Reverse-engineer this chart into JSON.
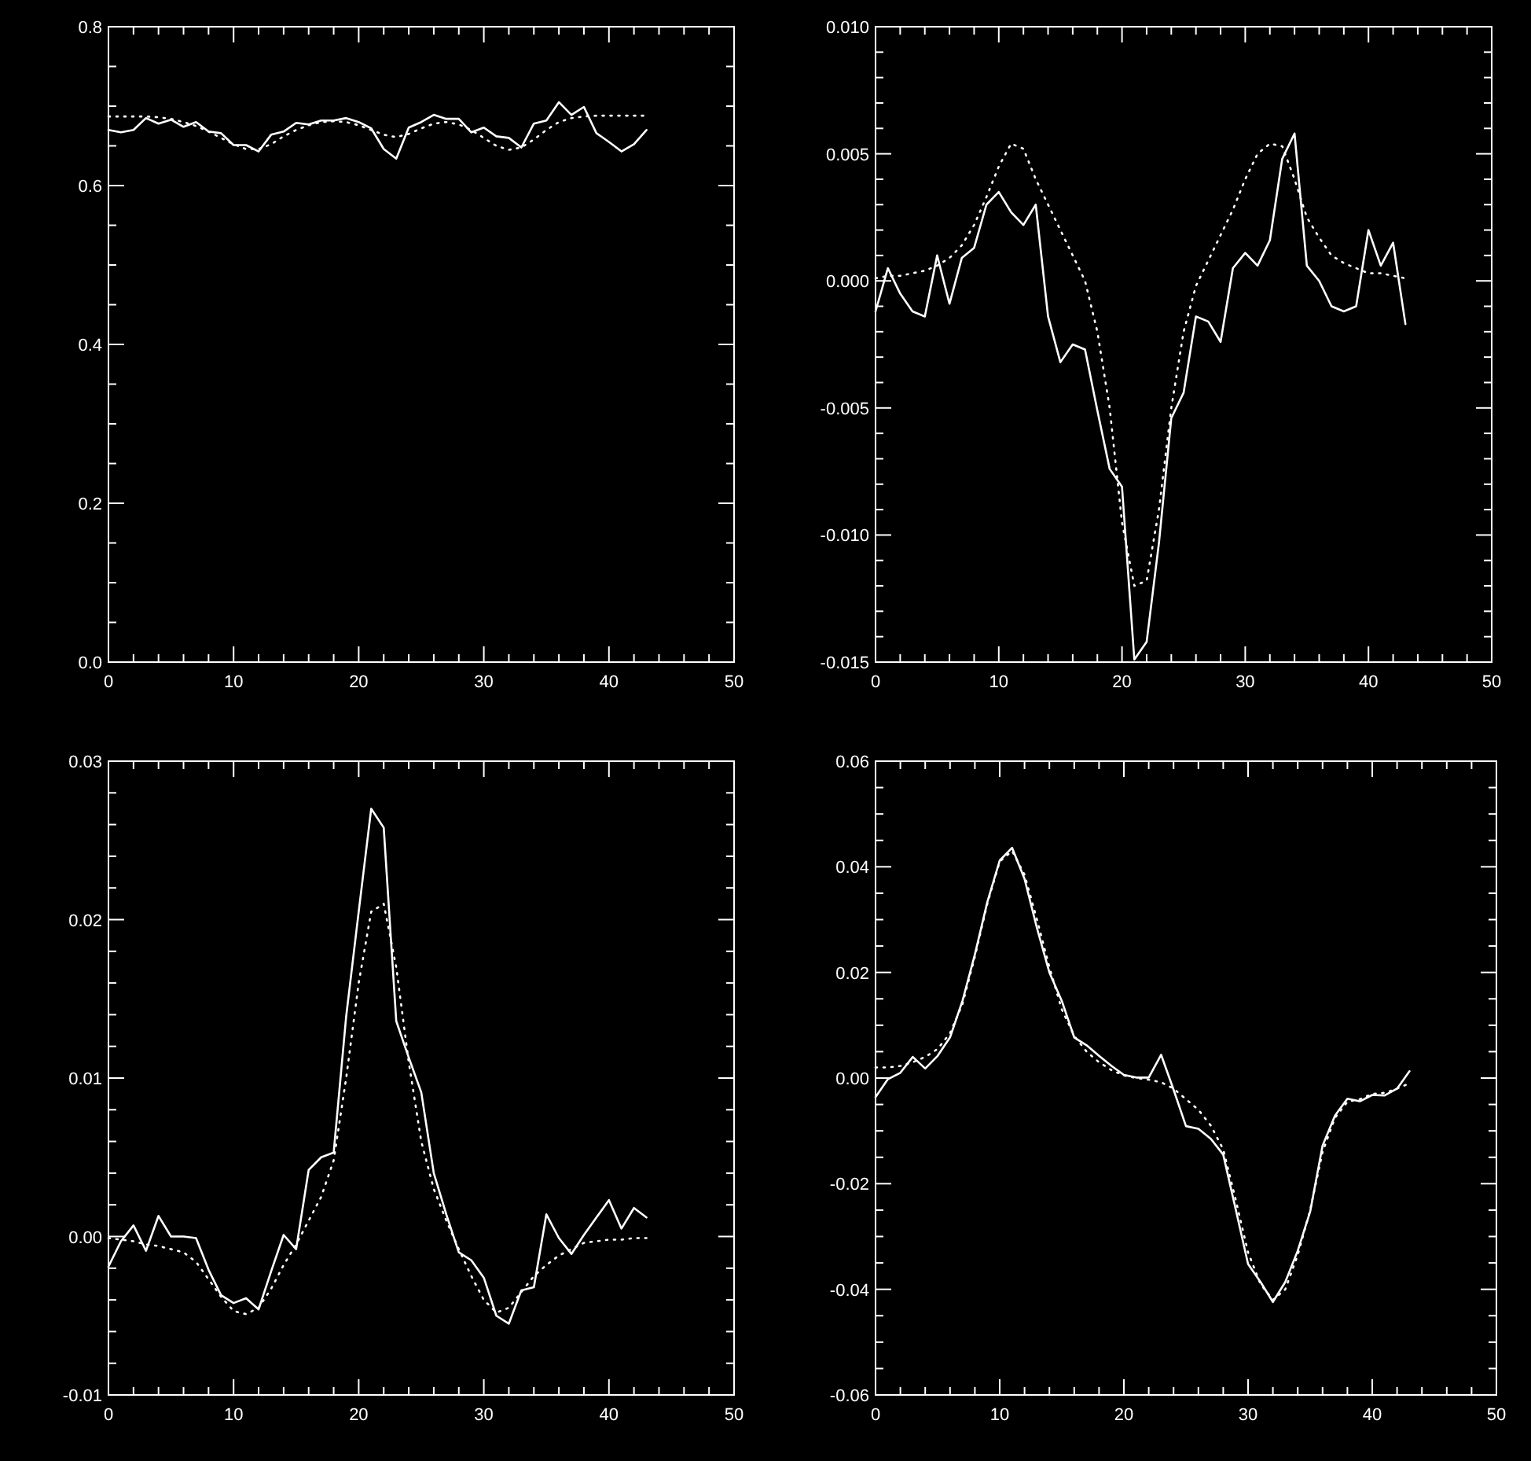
{
  "chart_data": [
    {
      "type": "line",
      "x": [
        0,
        1,
        2,
        3,
        4,
        5,
        6,
        7,
        8,
        9,
        10,
        11,
        12,
        13,
        14,
        15,
        16,
        17,
        18,
        19,
        20,
        21,
        22,
        23,
        24,
        25,
        26,
        27,
        28,
        29,
        30,
        31,
        32,
        33,
        34,
        35,
        36,
        37,
        38,
        39,
        40,
        41,
        42,
        43
      ],
      "xlim": [
        0,
        50
      ],
      "ylim": [
        0,
        0.8
      ],
      "xticks": [
        0,
        {
          "value": 2,
          "label": null
        },
        {
          "value": 4,
          "label": null
        },
        {
          "value": 6,
          "label": null
        },
        {
          "value": 8,
          "label": null
        },
        10,
        {
          "value": 12,
          "label": null
        },
        {
          "value": 14,
          "label": null
        },
        {
          "value": 16,
          "label": null
        },
        {
          "value": 18,
          "label": null
        },
        20,
        {
          "value": 22,
          "label": null
        },
        {
          "value": 24,
          "label": null
        },
        {
          "value": 26,
          "label": null
        },
        {
          "value": 28,
          "label": null
        },
        30,
        {
          "value": 32,
          "label": null
        },
        {
          "value": 34,
          "label": null
        },
        {
          "value": 36,
          "label": null
        },
        {
          "value": 38,
          "label": null
        },
        40,
        {
          "value": 42,
          "label": null
        },
        {
          "value": 44,
          "label": null
        },
        {
          "value": 46,
          "label": null
        },
        {
          "value": 48,
          "label": null
        },
        50
      ],
      "yticks": [
        {
          "value": 0,
          "label": "0.0"
        },
        {
          "value": 0.05,
          "label": null
        },
        {
          "value": 0.1,
          "label": null
        },
        {
          "value": 0.15,
          "label": null
        },
        {
          "value": 0.2,
          "label": "0.2"
        },
        {
          "value": 0.25,
          "label": null
        },
        {
          "value": 0.3,
          "label": null
        },
        {
          "value": 0.35,
          "label": null
        },
        {
          "value": 0.4,
          "label": "0.4"
        },
        {
          "value": 0.45,
          "label": null
        },
        {
          "value": 0.5,
          "label": null
        },
        {
          "value": 0.55,
          "label": null
        },
        {
          "value": 0.6,
          "label": "0.6"
        },
        {
          "value": 0.65,
          "label": null
        },
        {
          "value": 0.7,
          "label": null
        },
        {
          "value": 0.75,
          "label": null
        },
        {
          "value": 0.8,
          "label": "0.8"
        }
      ],
      "series": [
        {
          "color": "#ffffff",
          "line_style": "solid",
          "values": [
            0.67,
            0.667,
            0.67,
            0.685,
            0.678,
            0.683,
            0.674,
            0.68,
            0.668,
            0.666,
            0.651,
            0.651,
            0.643,
            0.664,
            0.668,
            0.679,
            0.677,
            0.682,
            0.682,
            0.685,
            0.68,
            0.672,
            0.646,
            0.634,
            0.673,
            0.68,
            0.689,
            0.684,
            0.684,
            0.667,
            0.673,
            0.662,
            0.66,
            0.648,
            0.678,
            0.682,
            0.705,
            0.689,
            0.699,
            0.666,
            0.655,
            0.643,
            0.652,
            0.67
          ]
        },
        {
          "color": "#ffffff",
          "line_style": "dotted",
          "values": [
            0.687,
            0.687,
            0.687,
            0.687,
            0.686,
            0.684,
            0.68,
            0.675,
            0.668,
            0.66,
            0.652,
            0.646,
            0.646,
            0.652,
            0.662,
            0.67,
            0.676,
            0.68,
            0.681,
            0.68,
            0.676,
            0.67,
            0.664,
            0.661,
            0.665,
            0.672,
            0.678,
            0.68,
            0.677,
            0.67,
            0.66,
            0.65,
            0.645,
            0.648,
            0.658,
            0.67,
            0.68,
            0.685,
            0.687,
            0.688,
            0.688,
            0.688,
            0.688,
            0.688
          ]
        }
      ]
    },
    {
      "type": "line",
      "x": [
        0,
        1,
        2,
        3,
        4,
        5,
        6,
        7,
        8,
        9,
        10,
        11,
        12,
        13,
        14,
        15,
        16,
        17,
        18,
        19,
        20,
        21,
        22,
        23,
        24,
        25,
        26,
        27,
        28,
        29,
        30,
        31,
        32,
        33,
        34,
        35,
        36,
        37,
        38,
        39,
        40,
        41,
        42,
        43
      ],
      "xlim": [
        0,
        50
      ],
      "ylim": [
        -0.015,
        0.01
      ],
      "xticks": [
        0,
        {
          "value": 2,
          "label": null
        },
        {
          "value": 4,
          "label": null
        },
        {
          "value": 6,
          "label": null
        },
        {
          "value": 8,
          "label": null
        },
        10,
        {
          "value": 12,
          "label": null
        },
        {
          "value": 14,
          "label": null
        },
        {
          "value": 16,
          "label": null
        },
        {
          "value": 18,
          "label": null
        },
        20,
        {
          "value": 22,
          "label": null
        },
        {
          "value": 24,
          "label": null
        },
        {
          "value": 26,
          "label": null
        },
        {
          "value": 28,
          "label": null
        },
        30,
        {
          "value": 32,
          "label": null
        },
        {
          "value": 34,
          "label": null
        },
        {
          "value": 36,
          "label": null
        },
        {
          "value": 38,
          "label": null
        },
        40,
        {
          "value": 42,
          "label": null
        },
        {
          "value": 44,
          "label": null
        },
        {
          "value": 46,
          "label": null
        },
        {
          "value": 48,
          "label": null
        },
        50
      ],
      "yticks": [
        {
          "value": -0.015,
          "label": "-0.015"
        },
        {
          "value": -0.014,
          "label": null
        },
        {
          "value": -0.013,
          "label": null
        },
        {
          "value": -0.012,
          "label": null
        },
        {
          "value": -0.011,
          "label": null
        },
        {
          "value": -0.01,
          "label": "-0.010"
        },
        {
          "value": -0.009,
          "label": null
        },
        {
          "value": -0.008,
          "label": null
        },
        {
          "value": -0.007,
          "label": null
        },
        {
          "value": -0.006,
          "label": null
        },
        {
          "value": -0.005,
          "label": "-0.005"
        },
        {
          "value": -0.004,
          "label": null
        },
        {
          "value": -0.003,
          "label": null
        },
        {
          "value": -0.002,
          "label": null
        },
        {
          "value": -0.001,
          "label": null
        },
        {
          "value": 0,
          "label": "0.000"
        },
        {
          "value": 0.001,
          "label": null
        },
        {
          "value": 0.002,
          "label": null
        },
        {
          "value": 0.003,
          "label": null
        },
        {
          "value": 0.004,
          "label": null
        },
        {
          "value": 0.005,
          "label": "0.005"
        },
        {
          "value": 0.006,
          "label": null
        },
        {
          "value": 0.007,
          "label": null
        },
        {
          "value": 0.008,
          "label": null
        },
        {
          "value": 0.009,
          "label": null
        },
        {
          "value": 0.01,
          "label": "0.010"
        }
      ],
      "series": [
        {
          "color": "#ffffff",
          "line_style": "solid",
          "values": [
            -0.0012,
            0.0005,
            -0.0005,
            -0.0012,
            -0.0014,
            0.001,
            -0.0009,
            0.0009,
            0.0013,
            0.003,
            0.0035,
            0.0027,
            0.0022,
            0.003,
            -0.0014,
            -0.0032,
            -0.0025,
            -0.0027,
            -0.0051,
            -0.0074,
            -0.0081,
            -0.0149,
            -0.0142,
            -0.0103,
            -0.0054,
            -0.0044,
            -0.0014,
            -0.0016,
            -0.0024,
            0.0005,
            0.0011,
            0.0006,
            0.0016,
            0.0048,
            0.0058,
            0.0006,
            0.0,
            -0.001,
            -0.0012,
            -0.001,
            0.002,
            0.0006,
            0.0015,
            -0.0017
          ]
        },
        {
          "color": "#ffffff",
          "line_style": "dotted",
          "values": [
            0.0001,
            0.0002,
            0.0002,
            0.0003,
            0.0004,
            0.0006,
            0.0009,
            0.0014,
            0.0022,
            0.0033,
            0.0045,
            0.0054,
            0.0052,
            0.004,
            0.003,
            0.002,
            0.001,
            0.0,
            -0.002,
            -0.005,
            -0.0095,
            -0.012,
            -0.0118,
            -0.009,
            -0.005,
            -0.002,
            -0.0002,
            0.0008,
            0.0018,
            0.0028,
            0.004,
            0.005,
            0.0054,
            0.0053,
            0.004,
            0.0025,
            0.0017,
            0.001,
            0.0007,
            0.0005,
            0.0003,
            0.0003,
            0.0002,
            0.0001
          ]
        }
      ]
    },
    {
      "type": "line",
      "x": [
        0,
        1,
        2,
        3,
        4,
        5,
        6,
        7,
        8,
        9,
        10,
        11,
        12,
        13,
        14,
        15,
        16,
        17,
        18,
        19,
        20,
        21,
        22,
        23,
        24,
        25,
        26,
        27,
        28,
        29,
        30,
        31,
        32,
        33,
        34,
        35,
        36,
        37,
        38,
        39,
        40,
        41,
        42,
        43
      ],
      "xlim": [
        0,
        50
      ],
      "ylim": [
        -0.01,
        0.03
      ],
      "xticks": [
        0,
        {
          "value": 2,
          "label": null
        },
        {
          "value": 4,
          "label": null
        },
        {
          "value": 6,
          "label": null
        },
        {
          "value": 8,
          "label": null
        },
        10,
        {
          "value": 12,
          "label": null
        },
        {
          "value": 14,
          "label": null
        },
        {
          "value": 16,
          "label": null
        },
        {
          "value": 18,
          "label": null
        },
        20,
        {
          "value": 22,
          "label": null
        },
        {
          "value": 24,
          "label": null
        },
        {
          "value": 26,
          "label": null
        },
        {
          "value": 28,
          "label": null
        },
        30,
        {
          "value": 32,
          "label": null
        },
        {
          "value": 34,
          "label": null
        },
        {
          "value": 36,
          "label": null
        },
        {
          "value": 38,
          "label": null
        },
        40,
        {
          "value": 42,
          "label": null
        },
        {
          "value": 44,
          "label": null
        },
        {
          "value": 46,
          "label": null
        },
        {
          "value": 48,
          "label": null
        },
        50
      ],
      "yticks": [
        {
          "value": -0.01,
          "label": "-0.01"
        },
        {
          "value": -0.008,
          "label": null
        },
        {
          "value": -0.006,
          "label": null
        },
        {
          "value": -0.004,
          "label": null
        },
        {
          "value": -0.002,
          "label": null
        },
        {
          "value": 0,
          "label": "0.00"
        },
        {
          "value": 0.002,
          "label": null
        },
        {
          "value": 0.004,
          "label": null
        },
        {
          "value": 0.006,
          "label": null
        },
        {
          "value": 0.008,
          "label": null
        },
        {
          "value": 0.01,
          "label": "0.01"
        },
        {
          "value": 0.012,
          "label": null
        },
        {
          "value": 0.014,
          "label": null
        },
        {
          "value": 0.016,
          "label": null
        },
        {
          "value": 0.018,
          "label": null
        },
        {
          "value": 0.02,
          "label": "0.02"
        },
        {
          "value": 0.022,
          "label": null
        },
        {
          "value": 0.024,
          "label": null
        },
        {
          "value": 0.026,
          "label": null
        },
        {
          "value": 0.028,
          "label": null
        },
        {
          "value": 0.03,
          "label": "0.03"
        }
      ],
      "series": [
        {
          "color": "#ffffff",
          "line_style": "solid",
          "values": [
            -0.0019,
            -0.0003,
            0.0007,
            -0.0009,
            0.0013,
            0.0,
            0.0,
            -0.0001,
            -0.0021,
            -0.0037,
            -0.0042,
            -0.0039,
            -0.0046,
            -0.0022,
            0.0001,
            -0.0008,
            0.0042,
            0.005,
            0.0053,
            0.0139,
            0.0205,
            0.027,
            0.0258,
            0.0136,
            0.0113,
            0.0091,
            0.004,
            0.0014,
            -0.001,
            -0.0015,
            -0.0026,
            -0.005,
            -0.0055,
            -0.0034,
            -0.0032,
            0.0014,
            -0.0001,
            -0.0011,
            0.0001,
            0.0012,
            0.0023,
            0.0005,
            0.0018,
            0.0012
          ]
        },
        {
          "color": "#ffffff",
          "line_style": "dotted",
          "values": [
            -0.0001,
            -0.0002,
            -0.0003,
            -0.0005,
            -0.0006,
            -0.0008,
            -0.001,
            -0.0016,
            -0.0027,
            -0.0038,
            -0.0047,
            -0.0049,
            -0.0045,
            -0.0033,
            -0.0018,
            -0.0005,
            0.001,
            0.0025,
            0.0048,
            0.01,
            0.016,
            0.0205,
            0.021,
            0.017,
            0.011,
            0.006,
            0.003,
            0.001,
            -0.0008,
            -0.0025,
            -0.004,
            -0.0048,
            -0.0045,
            -0.0035,
            -0.0025,
            -0.0018,
            -0.0012,
            -0.0008,
            -0.0004,
            -0.0003,
            -0.0002,
            -0.0002,
            -0.0001,
            -0.0001
          ]
        }
      ]
    },
    {
      "type": "line",
      "x": [
        0,
        1,
        2,
        3,
        4,
        5,
        6,
        7,
        8,
        9,
        10,
        11,
        12,
        13,
        14,
        15,
        16,
        17,
        18,
        19,
        20,
        21,
        22,
        23,
        24,
        25,
        26,
        27,
        28,
        29,
        30,
        31,
        32,
        33,
        34,
        35,
        36,
        37,
        38,
        39,
        40,
        41,
        42,
        43
      ],
      "xlim": [
        0,
        50
      ],
      "ylim": [
        -0.06,
        0.06
      ],
      "xticks": [
        0,
        {
          "value": 2,
          "label": null
        },
        {
          "value": 4,
          "label": null
        },
        {
          "value": 6,
          "label": null
        },
        {
          "value": 8,
          "label": null
        },
        10,
        {
          "value": 12,
          "label": null
        },
        {
          "value": 14,
          "label": null
        },
        {
          "value": 16,
          "label": null
        },
        {
          "value": 18,
          "label": null
        },
        20,
        {
          "value": 22,
          "label": null
        },
        {
          "value": 24,
          "label": null
        },
        {
          "value": 26,
          "label": null
        },
        {
          "value": 28,
          "label": null
        },
        30,
        {
          "value": 32,
          "label": null
        },
        {
          "value": 34,
          "label": null
        },
        {
          "value": 36,
          "label": null
        },
        {
          "value": 38,
          "label": null
        },
        40,
        {
          "value": 42,
          "label": null
        },
        {
          "value": 44,
          "label": null
        },
        {
          "value": 46,
          "label": null
        },
        {
          "value": 48,
          "label": null
        },
        50
      ],
      "yticks": [
        {
          "value": -0.06,
          "label": "-0.06"
        },
        {
          "value": -0.055,
          "label": null
        },
        {
          "value": -0.05,
          "label": null
        },
        {
          "value": -0.045,
          "label": null
        },
        {
          "value": -0.04,
          "label": "-0.04"
        },
        {
          "value": -0.035,
          "label": null
        },
        {
          "value": -0.03,
          "label": null
        },
        {
          "value": -0.025,
          "label": null
        },
        {
          "value": -0.02,
          "label": "-0.02"
        },
        {
          "value": -0.015,
          "label": null
        },
        {
          "value": -0.01,
          "label": null
        },
        {
          "value": -0.005,
          "label": null
        },
        {
          "value": 0,
          "label": "0.00"
        },
        {
          "value": 0.005,
          "label": null
        },
        {
          "value": 0.01,
          "label": null
        },
        {
          "value": 0.015,
          "label": null
        },
        {
          "value": 0.02,
          "label": "0.02"
        },
        {
          "value": 0.025,
          "label": null
        },
        {
          "value": 0.03,
          "label": null
        },
        {
          "value": 0.035,
          "label": null
        },
        {
          "value": 0.04,
          "label": "0.04"
        },
        {
          "value": 0.045,
          "label": null
        },
        {
          "value": 0.05,
          "label": null
        },
        {
          "value": 0.055,
          "label": null
        },
        {
          "value": 0.06,
          "label": "0.06"
        }
      ],
      "series": [
        {
          "color": "#ffffff",
          "line_style": "solid",
          "values": [
            -0.0036,
            -0.0002,
            0.001,
            0.004,
            0.0018,
            0.0042,
            0.0077,
            0.0146,
            0.0234,
            0.0333,
            0.0412,
            0.0436,
            0.0377,
            0.0284,
            0.02,
            0.0146,
            0.0077,
            0.0062,
            0.0042,
            0.0023,
            0.0006,
            0.0001,
            0.0001,
            0.0044,
            -0.0022,
            -0.0091,
            -0.0096,
            -0.0115,
            -0.0145,
            -0.0248,
            -0.0352,
            -0.0386,
            -0.0424,
            -0.0386,
            -0.0327,
            -0.0253,
            -0.0128,
            -0.0071,
            -0.0039,
            -0.0044,
            -0.0032,
            -0.0033,
            -0.002,
            0.0013
          ]
        },
        {
          "color": "#ffffff",
          "line_style": "dotted",
          "values": [
            0.002,
            0.002,
            0.0023,
            0.003,
            0.004,
            0.0055,
            0.0085,
            0.014,
            0.023,
            0.033,
            0.041,
            0.043,
            0.0385,
            0.03,
            0.021,
            0.013,
            0.008,
            0.005,
            0.003,
            0.0015,
            0.0005,
            0.0,
            -0.0003,
            -0.0008,
            -0.002,
            -0.004,
            -0.006,
            -0.009,
            -0.0135,
            -0.023,
            -0.033,
            -0.039,
            -0.042,
            -0.04,
            -0.0335,
            -0.025,
            -0.014,
            -0.0075,
            -0.0045,
            -0.004,
            -0.003,
            -0.0028,
            -0.002,
            -0.001
          ]
        }
      ]
    }
  ]
}
